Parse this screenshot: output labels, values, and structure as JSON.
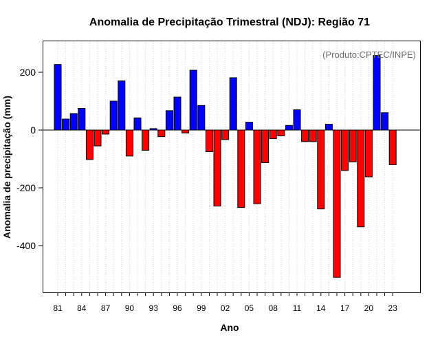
{
  "chart_data": {
    "type": "bar",
    "title": "Anomalia de Precipitação Trimestral (NDJ): Região 71",
    "xlabel": "Ano",
    "ylabel": "Anomalia de precipitação (mm)",
    "annotation": "(Produto:CPTEC/INPE)",
    "ylim": [
      -560,
      310
    ],
    "yticks": [
      -400,
      -200,
      0,
      200
    ],
    "positive_color": "#0000ff",
    "negative_color": "#ff0000",
    "grid": "vertical dotted",
    "categories": [
      "81",
      "82",
      "83",
      "84",
      "85",
      "86",
      "87",
      "88",
      "89",
      "90",
      "91",
      "92",
      "93",
      "94",
      "95",
      "96",
      "97",
      "98",
      "99",
      "00",
      "01",
      "02",
      "03",
      "04",
      "05",
      "06",
      "07",
      "08",
      "09",
      "10",
      "11",
      "12",
      "13",
      "14",
      "15",
      "16",
      "17",
      "18",
      "19",
      "20",
      "21",
      "22",
      "23"
    ],
    "xtick_labels": [
      "81",
      "84",
      "87",
      "90",
      "93",
      "96",
      "99",
      "02",
      "05",
      "08",
      "11",
      "14",
      "17",
      "20",
      "23"
    ],
    "values": [
      227,
      38,
      57,
      75,
      -102,
      -55,
      -14,
      100,
      170,
      -90,
      42,
      -70,
      5,
      -23,
      67,
      114,
      -10,
      207,
      85,
      -75,
      -263,
      -33,
      181,
      -268,
      27,
      -255,
      -113,
      -30,
      -20,
      16,
      70,
      -40,
      -40,
      -273,
      20,
      -510,
      -140,
      -110,
      -335,
      -162,
      258,
      60,
      -120
    ]
  }
}
